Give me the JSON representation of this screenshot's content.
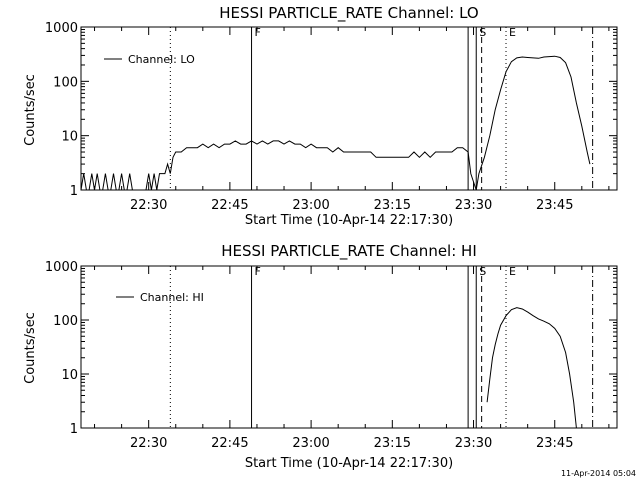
{
  "chart_data": [
    {
      "type": "line",
      "title": "HESSI PARTICLE_RATE Channel: LO",
      "xlabel": "Start Time (10-Apr-14 22:17:30)",
      "ylabel": "Counts/sec",
      "y_scale": "log",
      "ylim": [
        1,
        1000
      ],
      "xlim": [
        "22:17:30",
        "23:56:30"
      ],
      "x_ticks": [
        "22:30",
        "22:45",
        "23:00",
        "23:15",
        "23:30",
        "23:45"
      ],
      "y_ticks": [
        "1",
        "10",
        "100",
        "1000"
      ],
      "legend": {
        "placement": "top-left",
        "entries": [
          "Channel: LO"
        ]
      },
      "grid": false,
      "vertical_markers": [
        {
          "time": "22:34:00",
          "style": "dotted",
          "label": ""
        },
        {
          "time": "22:49:00",
          "style": "solid",
          "label": "F"
        },
        {
          "time": "23:29:00",
          "style": "solid",
          "label": ""
        },
        {
          "time": "23:30:30",
          "style": "solid",
          "label": "S"
        },
        {
          "time": "23:31:30",
          "style": "dashed",
          "label": ""
        },
        {
          "time": "23:36:00",
          "style": "dotted",
          "label": "E"
        },
        {
          "time": "23:52:00",
          "style": "dash-dot",
          "label": ""
        }
      ],
      "series": [
        {
          "name": "Channel: LO",
          "x": [
            "22:17:30",
            "22:18:00",
            "22:18:30",
            "22:19:00",
            "22:19:30",
            "22:20:00",
            "22:20:30",
            "22:21:00",
            "22:21:30",
            "22:22:00",
            "22:22:30",
            "22:23:00",
            "22:23:30",
            "22:24:00",
            "22:24:30",
            "22:25:00",
            "22:25:30",
            "22:26:00",
            "22:26:30",
            "22:27:00",
            "22:27:30",
            "22:28:00",
            "22:28:30",
            "22:29:00",
            "22:29:30",
            "22:30:00",
            "22:30:30",
            "22:31:00",
            "22:31:30",
            "22:32:00",
            "22:32:30",
            "22:33:00",
            "22:33:30",
            "22:34:00",
            "22:34:30",
            "22:35:00",
            "22:36:00",
            "22:37:00",
            "22:38:00",
            "22:39:00",
            "22:40:00",
            "22:41:00",
            "22:42:00",
            "22:43:00",
            "22:44:00",
            "22:45:00",
            "22:46:00",
            "22:47:00",
            "22:48:00",
            "22:49:00",
            "22:50:00",
            "22:51:00",
            "22:52:00",
            "22:53:00",
            "22:54:00",
            "22:55:00",
            "22:56:00",
            "22:57:00",
            "22:58:00",
            "22:59:00",
            "23:00:00",
            "23:01:00",
            "23:02:00",
            "23:03:00",
            "23:04:00",
            "23:05:00",
            "23:06:00",
            "23:07:00",
            "23:08:00",
            "23:09:00",
            "23:10:00",
            "23:11:00",
            "23:12:00",
            "23:13:00",
            "23:14:00",
            "23:15:00",
            "23:16:00",
            "23:17:00",
            "23:18:00",
            "23:19:00",
            "23:20:00",
            "23:21:00",
            "23:22:00",
            "23:23:00",
            "23:24:00",
            "23:25:00",
            "23:26:00",
            "23:27:00",
            "23:28:00",
            "23:29:00",
            "23:29:30",
            "23:30:30",
            "23:31:00",
            "23:32:00",
            "23:33:00",
            "23:34:00",
            "23:35:00",
            "23:36:00",
            "23:37:00",
            "23:38:00",
            "23:39:00",
            "23:40:00",
            "23:41:00",
            "23:42:00",
            "23:43:00",
            "23:44:00",
            "23:45:00",
            "23:46:00",
            "23:47:00",
            "23:48:00",
            "23:49:00",
            "23:50:00",
            "23:51:00",
            "23:51:30"
          ],
          "y": [
            1,
            2,
            1,
            1,
            2,
            1,
            2,
            1,
            1,
            2,
            1,
            1,
            2,
            1,
            1,
            2,
            1,
            1,
            2,
            1,
            1,
            1,
            1,
            1,
            1,
            2,
            1,
            2,
            1,
            2,
            2,
            2,
            3,
            2,
            4,
            5,
            5,
            6,
            6,
            6,
            7,
            6,
            7,
            6,
            7,
            7,
            8,
            7,
            7,
            8,
            7,
            8,
            7,
            8,
            8,
            7,
            8,
            7,
            7,
            6,
            7,
            6,
            6,
            6,
            5,
            6,
            5,
            5,
            5,
            5,
            5,
            5,
            4,
            4,
            4,
            4,
            4,
            4,
            4,
            5,
            4,
            5,
            4,
            5,
            5,
            5,
            5,
            6,
            6,
            5,
            2,
            1,
            2,
            4,
            10,
            30,
            70,
            150,
            230,
            270,
            280,
            275,
            270,
            265,
            280,
            285,
            290,
            275,
            220,
            120,
            40,
            15,
            5,
            3
          ]
        }
      ]
    },
    {
      "type": "line",
      "title": "HESSI PARTICLE_RATE Channel: HI",
      "xlabel": "Start Time (10-Apr-14 22:17:30)",
      "ylabel": "Counts/sec",
      "y_scale": "log",
      "ylim": [
        1,
        1000
      ],
      "xlim": [
        "22:17:30",
        "23:56:30"
      ],
      "x_ticks": [
        "22:30",
        "22:45",
        "23:00",
        "23:15",
        "23:30",
        "23:45"
      ],
      "y_ticks": [
        "1",
        "10",
        "100",
        "1000"
      ],
      "legend": {
        "placement": "top-left",
        "entries": [
          "Channel: HI"
        ]
      },
      "grid": false,
      "vertical_markers": [
        {
          "time": "22:34:00",
          "style": "dotted",
          "label": ""
        },
        {
          "time": "22:49:00",
          "style": "solid",
          "label": "F"
        },
        {
          "time": "23:29:00",
          "style": "solid",
          "label": ""
        },
        {
          "time": "23:30:30",
          "style": "solid",
          "label": "S"
        },
        {
          "time": "23:31:30",
          "style": "dashed",
          "label": ""
        },
        {
          "time": "23:36:00",
          "style": "dotted",
          "label": "E"
        },
        {
          "time": "23:52:00",
          "style": "dash-dot",
          "label": ""
        }
      ],
      "series": [
        {
          "name": "Channel: HI",
          "x": [
            "23:32:30",
            "23:33:00",
            "23:33:30",
            "23:34:00",
            "23:34:30",
            "23:35:00",
            "23:36:00",
            "23:37:00",
            "23:38:00",
            "23:39:00",
            "23:40:00",
            "23:41:00",
            "23:42:00",
            "23:43:00",
            "23:44:00",
            "23:45:00",
            "23:46:00",
            "23:47:00",
            "23:47:45",
            "23:48:30",
            "23:49:00"
          ],
          "y": [
            3,
            8,
            20,
            35,
            55,
            80,
            120,
            155,
            170,
            160,
            140,
            120,
            105,
            95,
            85,
            70,
            50,
            25,
            10,
            3,
            1
          ]
        }
      ]
    }
  ],
  "footer": {
    "timestamp": "11-Apr-2014 05:04"
  }
}
